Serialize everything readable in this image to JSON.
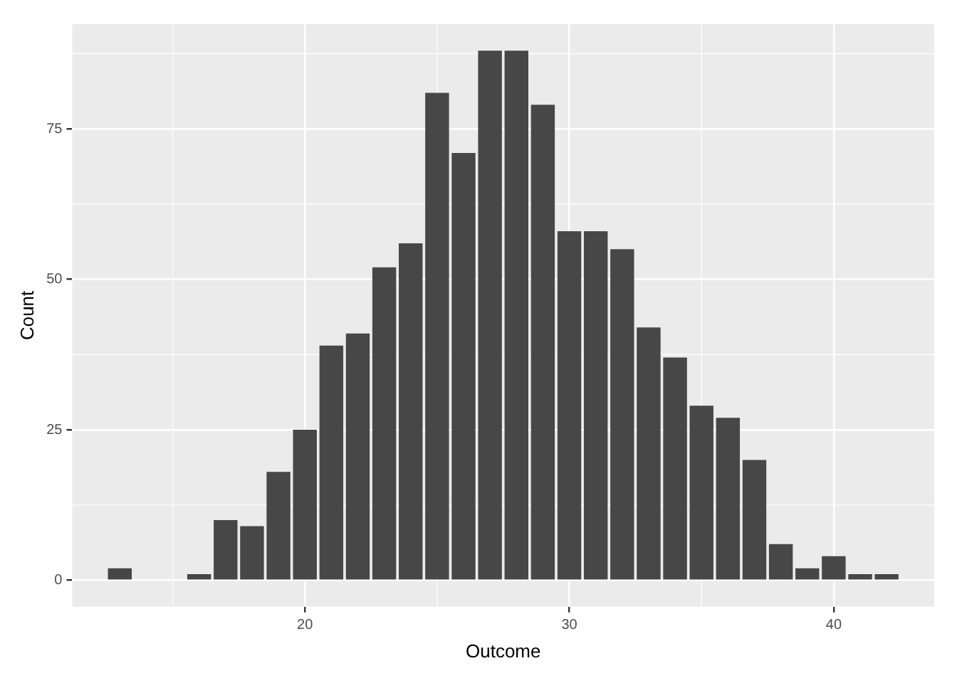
{
  "chart_data": {
    "type": "bar",
    "xlabel": "Outcome",
    "ylabel": "Count",
    "x": [
      13,
      16,
      17,
      18,
      19,
      20,
      21,
      22,
      23,
      24,
      25,
      26,
      27,
      28,
      29,
      30,
      31,
      32,
      33,
      34,
      35,
      36,
      37,
      38,
      39,
      40,
      41,
      42
    ],
    "values": [
      2,
      1,
      10,
      9,
      18,
      25,
      39,
      41,
      52,
      56,
      81,
      71,
      88,
      88,
      79,
      58,
      58,
      55,
      42,
      37,
      29,
      27,
      20,
      6,
      2,
      4,
      1,
      1
    ],
    "color": "#474747",
    "xlim": [
      11.2,
      43.8
    ],
    "xticks": [
      20,
      30,
      40
    ],
    "ylim": [
      -4.4,
      92.4
    ],
    "yticks": [
      0,
      25,
      50,
      75
    ],
    "grid": true,
    "legend": false
  }
}
